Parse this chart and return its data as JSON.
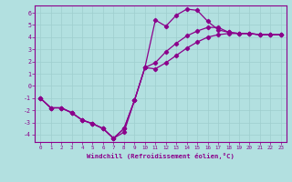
{
  "xlabel": "Windchill (Refroidissement éolien,°C)",
  "bg_color": "#b2e0e0",
  "grid_color": "#9ecece",
  "line_color": "#8b008b",
  "xlim": [
    -0.5,
    23.5
  ],
  "ylim": [
    -4.6,
    6.6
  ],
  "xticks": [
    0,
    1,
    2,
    3,
    4,
    5,
    6,
    7,
    8,
    9,
    10,
    11,
    12,
    13,
    14,
    15,
    16,
    17,
    18,
    19,
    20,
    21,
    22,
    23
  ],
  "yticks": [
    -4,
    -3,
    -2,
    -1,
    0,
    1,
    2,
    3,
    4,
    5,
    6
  ],
  "curve1_x": [
    0,
    1,
    2,
    3,
    4,
    5,
    6,
    7,
    8,
    9,
    10,
    11,
    12,
    13,
    14,
    15,
    16,
    17,
    18,
    19,
    20,
    21,
    22,
    23
  ],
  "curve1_y": [
    -1.0,
    -1.8,
    -1.8,
    -2.2,
    -2.8,
    -3.1,
    -3.5,
    -4.3,
    -3.8,
    -1.2,
    1.5,
    5.4,
    4.9,
    5.8,
    6.3,
    6.2,
    5.3,
    4.6,
    4.4,
    4.3,
    4.3,
    4.2,
    4.2,
    4.2
  ],
  "curve2_x": [
    0,
    1,
    2,
    3,
    4,
    5,
    6,
    7,
    8,
    9,
    10,
    11,
    12,
    13,
    14,
    15,
    16,
    17,
    18,
    19,
    20,
    21,
    22,
    23
  ],
  "curve2_y": [
    -1.0,
    -1.8,
    -1.8,
    -2.2,
    -2.8,
    -3.1,
    -3.5,
    -4.3,
    -3.5,
    -1.2,
    1.5,
    1.9,
    2.8,
    3.5,
    4.1,
    4.5,
    4.8,
    4.8,
    4.4,
    4.3,
    4.3,
    4.2,
    4.2,
    4.2
  ],
  "curve3_x": [
    0,
    1,
    2,
    3,
    4,
    5,
    6,
    7,
    8,
    9,
    10,
    11,
    12,
    13,
    14,
    15,
    16,
    17,
    18,
    19,
    20,
    21,
    22,
    23
  ],
  "curve3_y": [
    -1.0,
    -1.8,
    -1.8,
    -2.2,
    -2.8,
    -3.1,
    -3.5,
    -4.3,
    -3.5,
    -1.2,
    1.5,
    1.4,
    1.9,
    2.5,
    3.1,
    3.6,
    4.0,
    4.2,
    4.3,
    4.3,
    4.3,
    4.2,
    4.2,
    4.2
  ]
}
